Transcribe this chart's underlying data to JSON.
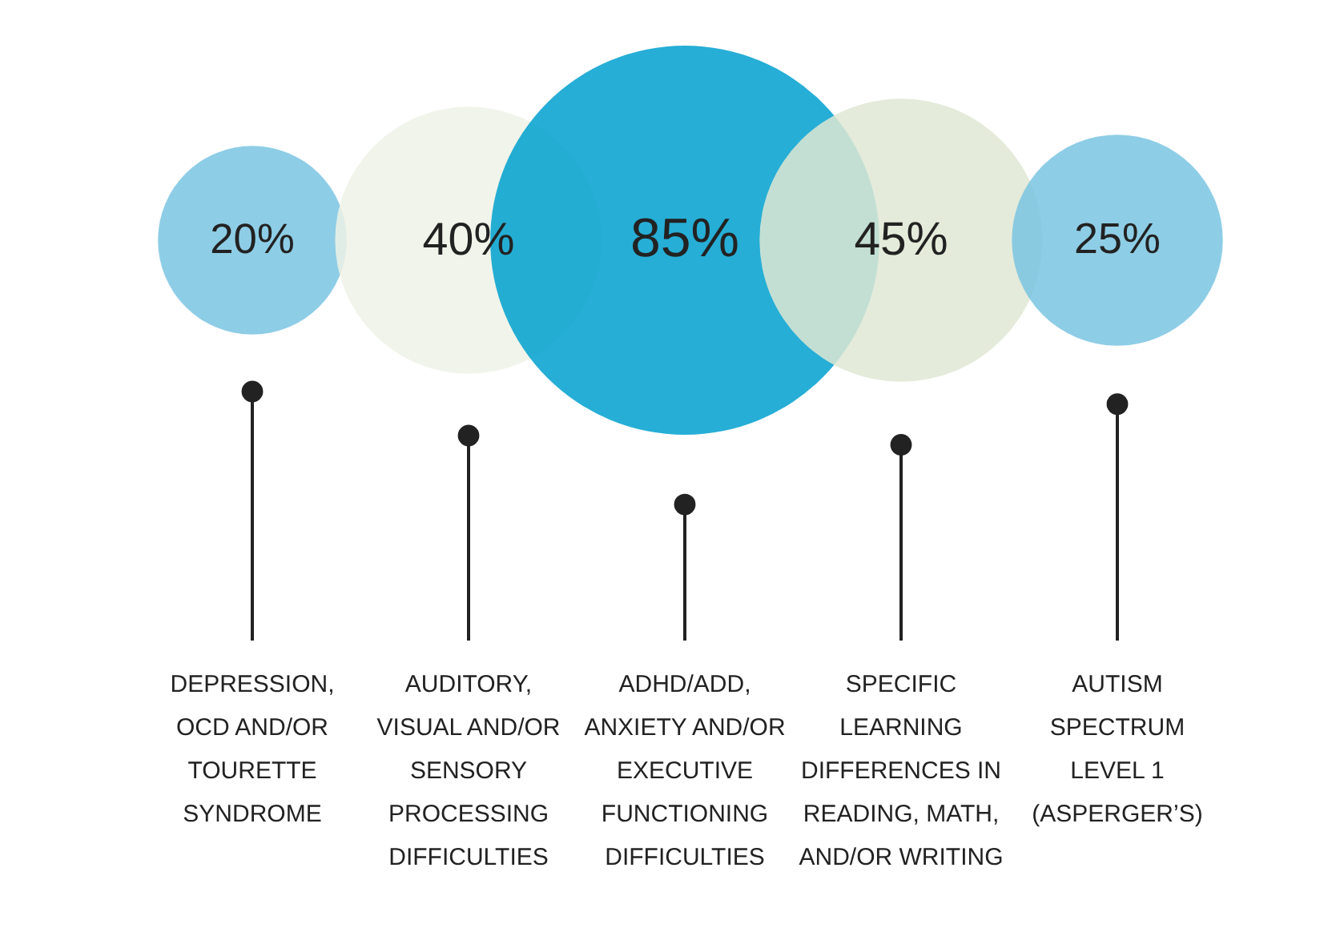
{
  "chart_data": {
    "type": "other",
    "categories": [
      "DEPRESSION,\nOCD AND/OR\nTOURETTE\nSYNDROME",
      "AUDITORY,\nVISUAL AND/OR\nSENSORY\nPROCESSING\nDIFFICULTIES",
      "ADHD/ADD,\nANXIETY AND/OR\nEXECUTIVE\nFUNCTIONING\nDIFFICULTIES",
      "SPECIFIC\nLEARNING\nDIFFERENCES IN\nREADING, MATH,\nAND/OR WRITING",
      "AUTISM\nSPECTRUM\nLEVEL 1\n(ASPERGER’S)"
    ],
    "values": [
      20,
      40,
      85,
      45,
      25
    ],
    "value_labels": [
      "20%",
      "40%",
      "85%",
      "45%",
      "25%"
    ],
    "colors": [
      "#7ac4e2",
      "#eef2e6",
      "#00a0cf",
      "#dfe8d3",
      "#7ac4e2"
    ]
  }
}
